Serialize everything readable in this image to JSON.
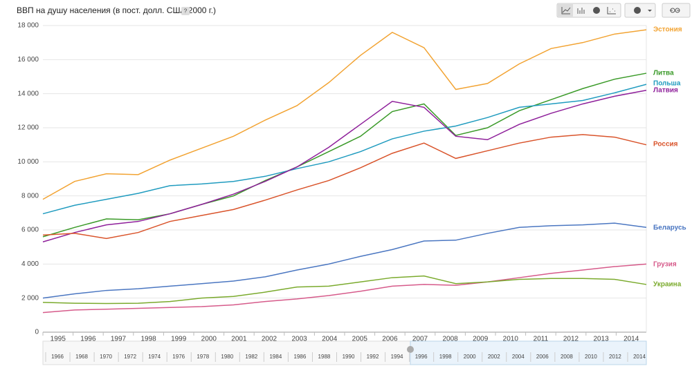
{
  "chart_data": {
    "type": "line",
    "title": "ВВП на душу населения (в пост. долл. США 2000 г.)",
    "help": "?",
    "categories": [
      "1995",
      "1996",
      "1997",
      "1998",
      "1999",
      "2000",
      "2001",
      "2002",
      "2003",
      "2004",
      "2005",
      "2006",
      "2007",
      "2008",
      "2009",
      "2010",
      "2011",
      "2012",
      "2013",
      "2014"
    ],
    "ylim": [
      0,
      18000
    ],
    "yticks": [
      0,
      {
        "value": 2000,
        "label": "2 000"
      },
      {
        "value": 4000,
        "label": "4 000"
      },
      {
        "value": 6000,
        "label": "6 000"
      },
      {
        "value": 8000,
        "label": "8 000"
      },
      {
        "value": 10000,
        "label": "10 000"
      },
      {
        "value": 12000,
        "label": "12 000"
      },
      {
        "value": 14000,
        "label": "14 000"
      },
      {
        "value": 16000,
        "label": "16 000"
      },
      {
        "value": 18000,
        "label": "18 000"
      }
    ],
    "grid": true,
    "series": [
      {
        "name": "Эстония",
        "color": "#f2a332",
        "values": [
          7800,
          8850,
          9300,
          9250,
          10100,
          10800,
          11500,
          12450,
          13300,
          14650,
          16250,
          17600,
          16700,
          14250,
          14600,
          15750,
          16650,
          17000,
          17500,
          17750
        ]
      },
      {
        "name": "Литва",
        "color": "#3a9a28",
        "values": [
          5600,
          6150,
          6650,
          6600,
          6950,
          7500,
          8000,
          8900,
          9700,
          10600,
          11500,
          12950,
          13400,
          11550,
          12000,
          13000,
          13650,
          14300,
          14850,
          15200
        ]
      },
      {
        "name": "Польша",
        "color": "#1f9bbf",
        "values": [
          6950,
          7450,
          7800,
          8150,
          8600,
          8700,
          8850,
          9150,
          9600,
          10000,
          10600,
          11350,
          11800,
          12100,
          12600,
          13200,
          13400,
          13600,
          14050,
          14550
        ]
      },
      {
        "name": "Латвия",
        "color": "#8e1f9a",
        "values": [
          5300,
          5850,
          6300,
          6500,
          6950,
          7500,
          8100,
          8850,
          9700,
          10850,
          12200,
          13550,
          13200,
          11500,
          11300,
          12200,
          12850,
          13400,
          13850,
          14200
        ]
      },
      {
        "name": "Россия",
        "color": "#d9532a",
        "values": [
          5700,
          5800,
          5500,
          5850,
          6500,
          6850,
          7200,
          7750,
          8350,
          8900,
          9650,
          10500,
          11100,
          10200,
          10650,
          11100,
          11450,
          11600,
          11450,
          11000
        ]
      },
      {
        "name": "Беларусь",
        "color": "#4a76c1",
        "values": [
          2000,
          2250,
          2450,
          2550,
          2700,
          2850,
          3000,
          3250,
          3650,
          4000,
          4450,
          4850,
          5350,
          5400,
          5800,
          6150,
          6250,
          6300,
          6400,
          6150
        ]
      },
      {
        "name": "Грузия",
        "color": "#d65a8a",
        "values": [
          1150,
          1300,
          1350,
          1400,
          1450,
          1500,
          1600,
          1800,
          1950,
          2150,
          2400,
          2700,
          2800,
          2750,
          2950,
          3200,
          3450,
          3650,
          3850,
          4000
        ]
      },
      {
        "name": "Украина",
        "color": "#7aaa2c",
        "values": [
          1750,
          1700,
          1680,
          1700,
          1800,
          2000,
          2100,
          2350,
          2650,
          2700,
          2950,
          3200,
          3300,
          2850,
          2950,
          3100,
          3150,
          3150,
          3100,
          2800
        ]
      }
    ],
    "range_selector": [
      "1966",
      "1968",
      "1970",
      "1972",
      "1974",
      "1976",
      "1978",
      "1980",
      "1982",
      "1984",
      "1986",
      "1988",
      "1990",
      "1992",
      "1994",
      "1996",
      "1998",
      "2000",
      "2002",
      "2004",
      "2006",
      "2008",
      "2010",
      "2012",
      "2014"
    ]
  }
}
